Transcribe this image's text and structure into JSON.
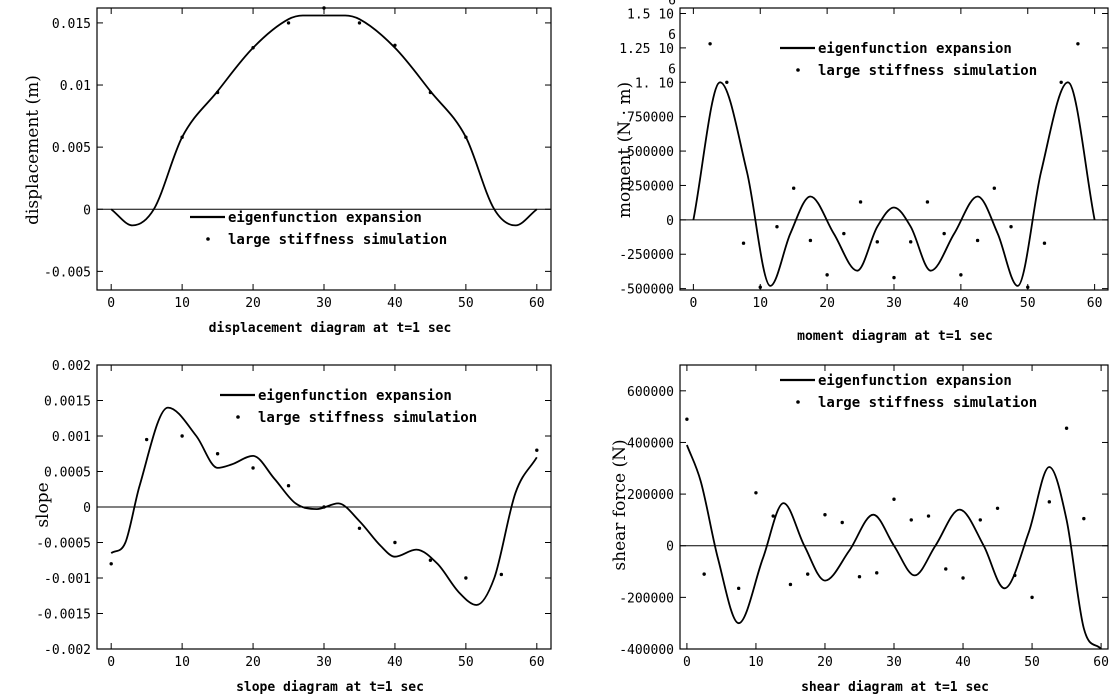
{
  "chart_data": [
    {
      "type": "line",
      "caption": "displacement diagram at t=1 sec",
      "ylabel": "displacement (m)",
      "xlim": [
        -2,
        62
      ],
      "ylim": [
        -0.0065,
        0.0162
      ],
      "xticks": [
        0,
        10,
        20,
        30,
        40,
        50,
        60
      ],
      "xtick_labels": [
        "0",
        "10",
        "20",
        "30",
        "40",
        "50",
        "60"
      ],
      "yticks": [
        -0.005,
        0,
        0.005,
        0.01,
        0.015
      ],
      "ytick_labels": [
        "-0.005",
        "0",
        "0.005",
        "0.01",
        "0.015"
      ],
      "legend": {
        "position": "lower-right",
        "line_label": "eigenfunction expansion",
        "dot_label": "large stiffness simulation"
      },
      "series": [
        {
          "name": "eigenfunction expansion",
          "style": "line",
          "x": [
            0,
            3,
            6,
            10,
            15,
            20,
            25,
            27,
            30,
            33,
            35,
            40,
            45,
            50,
            54,
            57,
            60
          ],
          "y": [
            0,
            -0.0013,
            0,
            0.0058,
            0.0095,
            0.013,
            0.0153,
            0.0156,
            0.0156,
            0.0156,
            0.0153,
            0.013,
            0.0095,
            0.0058,
            0,
            -0.0013,
            0
          ]
        },
        {
          "name": "large stiffness simulation",
          "style": "dots",
          "x": [
            10,
            15,
            20,
            25,
            30,
            35,
            40,
            45,
            50
          ],
          "y": [
            0.0058,
            0.0094,
            0.013,
            0.015,
            0.0162,
            0.015,
            0.0132,
            0.0094,
            0.0058
          ]
        }
      ]
    },
    {
      "type": "line",
      "caption": "moment diagram at t=1 sec",
      "ylabel": "moment (N · m)",
      "xlim": [
        -2,
        62
      ],
      "ylim": [
        -510000,
        1540000
      ],
      "xticks": [
        0,
        10,
        20,
        30,
        40,
        50,
        60
      ],
      "xtick_labels": [
        "0",
        "10",
        "20",
        "30",
        "40",
        "50",
        "60"
      ],
      "yticks": [
        -500000,
        -250000,
        0,
        250000,
        500000,
        750000,
        1000000,
        1250000,
        1500000
      ],
      "ytick_labels": [
        "-500000",
        "-250000",
        "0",
        "250000",
        "500000",
        "750000",
        "1. 10",
        "1.25 10",
        "1.5 10"
      ],
      "ytick_exponent": "6",
      "legend": {
        "position": "top-right",
        "line_label": "eigenfunction expansion",
        "dot_label": "large stiffness simulation"
      },
      "series": [
        {
          "name": "eigenfunction expansion",
          "style": "line",
          "x": [
            0,
            4,
            8,
            11.5,
            14.5,
            17.5,
            21,
            24.5,
            27.5,
            30,
            32.5,
            35.5,
            39,
            42.5,
            45.5,
            48.5,
            52,
            56,
            60
          ],
          "y": [
            0,
            1000000,
            350000,
            -480000,
            -100000,
            170000,
            -100000,
            -370000,
            -50000,
            90000,
            -50000,
            -370000,
            -100000,
            170000,
            -100000,
            -480000,
            350000,
            1000000,
            0
          ]
        },
        {
          "name": "large stiffness simulation",
          "style": "dots",
          "x": [
            2.5,
            5,
            7.5,
            10,
            12.5,
            15,
            17.5,
            20,
            22.5,
            25,
            27.5,
            30,
            32.5,
            35,
            37.5,
            40,
            42.5,
            45,
            47.5,
            50,
            52.5,
            55,
            57.5
          ],
          "y": [
            1280000,
            1000000,
            -170000,
            -490000,
            -50000,
            230000,
            -150000,
            -400000,
            -100000,
            130000,
            -160000,
            -420000,
            -160000,
            130000,
            -100000,
            -400000,
            -150000,
            230000,
            -50000,
            -490000,
            -170000,
            1000000,
            1280000
          ]
        }
      ]
    },
    {
      "type": "line",
      "caption": "slope diagram at t=1 sec",
      "ylabel": "slope",
      "xlim": [
        -2,
        62
      ],
      "ylim": [
        -0.002,
        0.002
      ],
      "xticks": [
        0,
        10,
        20,
        30,
        40,
        50,
        60
      ],
      "xtick_labels": [
        "0",
        "10",
        "20",
        "30",
        "40",
        "50",
        "60"
      ],
      "yticks": [
        -0.002,
        -0.0015,
        -0.001,
        -0.0005,
        0,
        0.0005,
        0.001,
        0.0015,
        0.002
      ],
      "ytick_labels": [
        "-0.002",
        "-0.0015",
        "-0.001",
        "-0.0005",
        "0",
        "0.0005",
        "0.001",
        "0.0015",
        "0.002"
      ],
      "legend": {
        "position": "top-right",
        "line_label": "eigenfunction expansion",
        "dot_label": "large stiffness simulation"
      },
      "series": [
        {
          "name": "eigenfunction expansion",
          "style": "line",
          "x": [
            0,
            2,
            4,
            8,
            12,
            15,
            17,
            20,
            23,
            26,
            29,
            32,
            35,
            38,
            40,
            43,
            46,
            49,
            51.5,
            54,
            57,
            60
          ],
          "y": [
            -0.00065,
            -0.0005,
            0.0003,
            0.0014,
            0.001,
            0.00055,
            0.0006,
            0.00072,
            0.0004,
            5e-05,
            -3e-05,
            5e-05,
            -0.0002,
            -0.00055,
            -0.0007,
            -0.0006,
            -0.0008,
            -0.0012,
            -0.00138,
            -0.001,
            0.0002,
            0.0007
          ]
        },
        {
          "name": "large stiffness simulation",
          "style": "dots",
          "x": [
            0,
            5,
            10,
            15,
            20,
            25,
            30,
            35,
            40,
            45,
            50,
            55,
            60
          ],
          "y": [
            -0.0008,
            0.00095,
            0.001,
            0.00075,
            0.00055,
            0.0003,
            0,
            -0.0003,
            -0.0005,
            -0.00075,
            -0.001,
            -0.00095,
            0.0008
          ]
        }
      ]
    },
    {
      "type": "line",
      "caption": "shear diagram at t=1 sec",
      "ylabel": "shear force (N)",
      "xlim": [
        -1,
        61
      ],
      "ylim": [
        -400000,
        700000
      ],
      "xticks": [
        0,
        10,
        20,
        30,
        40,
        50,
        60
      ],
      "xtick_labels": [
        "0",
        "10",
        "20",
        "30",
        "40",
        "50",
        "60"
      ],
      "yticks": [
        -400000,
        -200000,
        0,
        200000,
        400000,
        600000
      ],
      "ytick_labels": [
        "-400000",
        "-200000",
        "0",
        "200000",
        "400000",
        "600000"
      ],
      "legend": {
        "position": "top-right",
        "line_label": "eigenfunction expansion",
        "dot_label": "large stiffness simulation"
      },
      "series": [
        {
          "name": "eigenfunction expansion",
          "style": "line",
          "x": [
            0,
            2,
            4.5,
            7.5,
            11,
            14,
            17,
            20,
            23.5,
            27,
            30,
            33,
            36,
            39.5,
            43,
            46,
            49.5,
            52.5,
            55,
            57.5,
            60
          ],
          "y": [
            390000,
            250000,
            -50000,
            -300000,
            -50000,
            165000,
            0,
            -135000,
            -20000,
            120000,
            0,
            -115000,
            0,
            140000,
            0,
            -165000,
            50000,
            305000,
            100000,
            -320000,
            -400000
          ]
        },
        {
          "name": "large stiffness simulation",
          "style": "dots",
          "x": [
            0,
            2.5,
            7.5,
            10,
            12.5,
            15,
            17.5,
            20,
            22.5,
            25,
            27.5,
            30,
            32.5,
            35,
            37.5,
            40,
            42.5,
            45,
            47.5,
            50,
            52.5,
            55,
            57.5
          ],
          "y": [
            490000,
            -110000,
            -165000,
            205000,
            115000,
            -150000,
            -110000,
            120000,
            90000,
            -120000,
            -105000,
            180000,
            100000,
            115000,
            -90000,
            -125000,
            100000,
            145000,
            -115000,
            -200000,
            170000,
            455000,
            105000
          ]
        }
      ]
    }
  ]
}
